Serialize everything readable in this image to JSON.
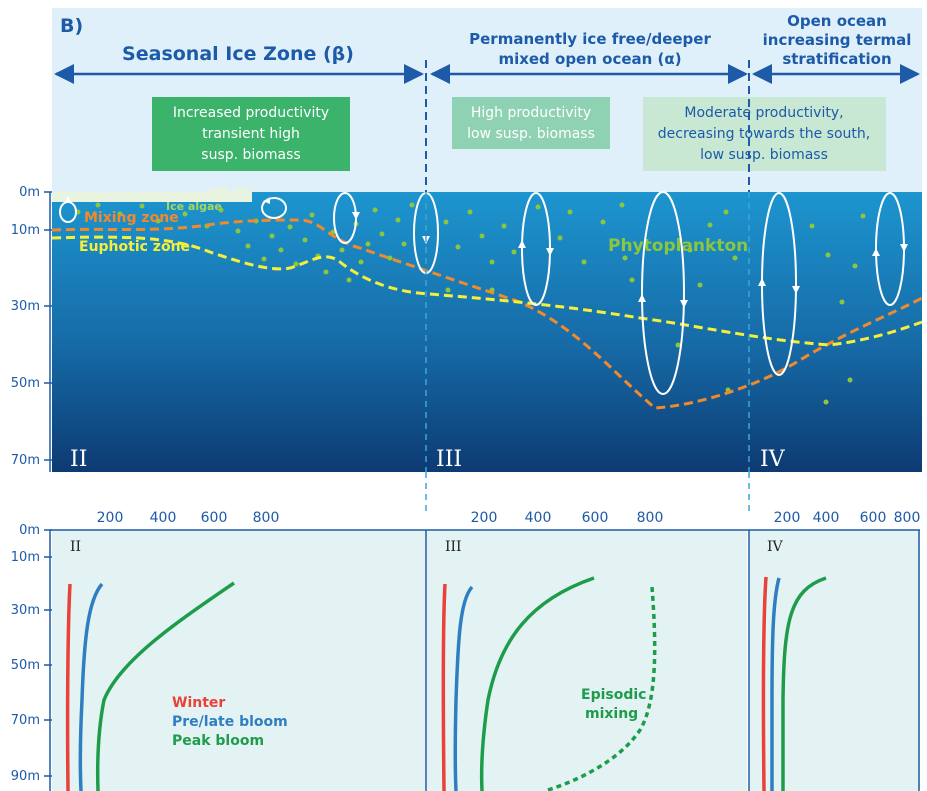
{
  "panel_label": "B)",
  "zones": {
    "seasonal": "Seasonal Ice Zone (β)",
    "permanent_line1": "Permanently ice free/deeper",
    "permanent_line2": "mixed open ocean (α)",
    "open_line1": "Open ocean",
    "open_line2": "increasing termal",
    "open_line3": "stratification"
  },
  "notes": {
    "note1": [
      "Increased productivity",
      "transient high",
      "susp. biomass"
    ],
    "note2": [
      "High productivity",
      "low susp. biomass"
    ],
    "note3": [
      "Moderate productivity,",
      "decreasing towards the south,",
      "low susp. biomass"
    ]
  },
  "ocean_labels": {
    "ice_algae": "Ice algae",
    "mixing_zone": "Mixing zone",
    "euphotic_zone": "Euphotic zone",
    "phytoplankton": "Phytoplankton"
  },
  "depth_ticks_top": [
    "0m",
    "10m",
    "30m",
    "50m",
    "70m"
  ],
  "region_labels": [
    "II",
    "III",
    "IV"
  ],
  "profile_depth_ticks": [
    "0m",
    "10m",
    "30m",
    "50m",
    "70m",
    "90m"
  ],
  "profile_x_ticks": {
    "II": [
      "200",
      "400",
      "600",
      "800"
    ],
    "III": [
      "200",
      "400",
      "600",
      "800"
    ],
    "IV": [
      "200",
      "400",
      "600",
      "800"
    ]
  },
  "legend": {
    "winter": "Winter",
    "prelate": "Pre/late bloom",
    "peak": "Peak bloom",
    "episodic_line1": "Episodic",
    "episodic_line2": "mixing"
  },
  "colors": {
    "sky": "#dff0fb",
    "ocean_top": "#1d95cf",
    "ocean_bottom": "#0d3a72",
    "arrow_blue": "#1d5aa8",
    "mixing_orange": "#f08a2c",
    "euphotic_yellow": "#f5ef3a",
    "plankton_green": "#8cc63f",
    "note1_bg": "#3bb36b",
    "note2_bg": "#8fd1b3",
    "note3_bg": "#c8e8d4",
    "panel_bg": "#e3f3f3",
    "winter_red": "#e8413a",
    "prelate_blue": "#2f7ec1",
    "peak_green": "#1e9c4b"
  }
}
